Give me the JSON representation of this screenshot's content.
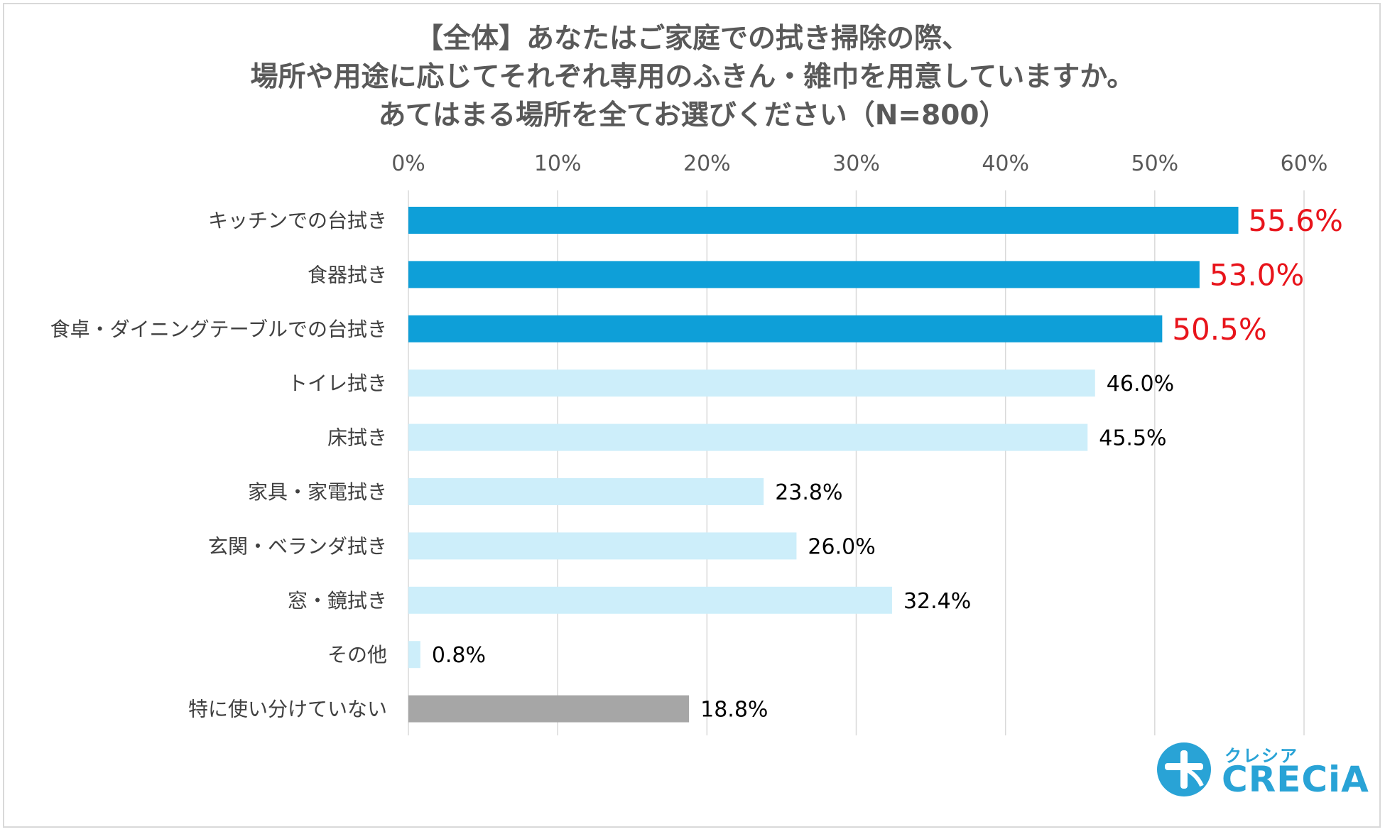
{
  "title_lines": [
    "【全体】あなたはご家庭での拭き掃除の際、",
    "場所や用途に応じてそれぞれ専用のふきん・雑巾を用意していますか。",
    "あてはまる場所を全てお選びください（N=800）"
  ],
  "chart_data": {
    "type": "bar",
    "orientation": "horizontal",
    "title": "【全体】あなたはご家庭での拭き掃除の際、場所や用途に応じてそれぞれ専用のふきん・雑巾を用意していますか。あてはまる場所を全てお選びください（N=800）",
    "categories": [
      "キッチンでの台拭き",
      "食器拭き",
      "食卓・ダイニングテーブルでの台拭き",
      "トイレ拭き",
      "床拭き",
      "家具・家電拭き",
      "玄関・ベランダ拭き",
      "窓・鏡拭き",
      "その他",
      "特に使い分けていない"
    ],
    "values": [
      55.6,
      53.0,
      50.5,
      46.0,
      45.5,
      23.8,
      26.0,
      32.4,
      0.8,
      18.8
    ],
    "value_labels": [
      "55.6%",
      "53.0%",
      "50.5%",
      "46.0%",
      "45.5%",
      "23.8%",
      "26.0%",
      "32.4%",
      "0.8%",
      "18.8%"
    ],
    "highlight": [
      true,
      true,
      true,
      false,
      false,
      false,
      false,
      false,
      false,
      false
    ],
    "xlim": [
      0,
      60
    ],
    "x_ticks": [
      "0%",
      "10%",
      "20%",
      "30%",
      "40%",
      "50%",
      "60%"
    ],
    "x_axis_position": "top",
    "grid": true,
    "colors": {
      "highlight_bar": "#0e9fd8",
      "normal_bar": "#cdeefa",
      "none_bar": "#a6a6a6",
      "highlight_label": "#e8141b",
      "normal_label": "#000000",
      "category_label": "#404040",
      "tick_label": "#595959",
      "grid": "#d9d9d9"
    }
  },
  "logo": {
    "kana": "クレシア",
    "word": "CRECiA",
    "color": "#29a3d6"
  }
}
